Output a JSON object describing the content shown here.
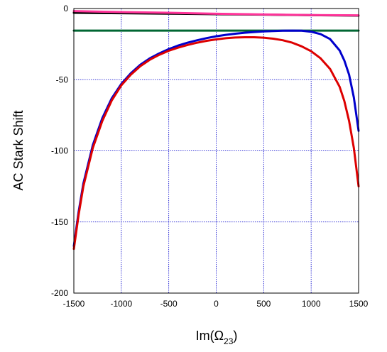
{
  "chart_data": {
    "type": "line",
    "title": "",
    "xlabel_main": "Im(Ω",
    "xlabel_sub": "23",
    "xlabel_close": ")",
    "ylabel": "AC Stark Shift",
    "xlim": [
      -1500,
      1500
    ],
    "ylim": [
      -200,
      0
    ],
    "xticks": [
      -1500,
      -1000,
      -500,
      0,
      500,
      1000,
      1500
    ],
    "yticks": [
      0,
      -50,
      -100,
      -150,
      -200
    ],
    "grid": true,
    "legend": "none",
    "colors": {
      "grid": "#0000cc",
      "axes": "#000000",
      "blue_curve": "#0000cc",
      "red_curve": "#dd0000",
      "green_line": "#006633",
      "black_line": "#000000",
      "pink_line": "#ff3399"
    },
    "series": [
      {
        "color_key": "green_line",
        "x": [
          -1500,
          1500
        ],
        "y": [
          -15.5,
          -15.5
        ]
      },
      {
        "color_key": "black_line",
        "x": [
          -1500,
          -1000,
          -500,
          0,
          500,
          1000,
          1500
        ],
        "y": [
          -3.0,
          -3.3,
          -3.6,
          -4.0,
          -4.3,
          -4.7,
          -5.0
        ]
      },
      {
        "color_key": "pink_line",
        "x": [
          -1500,
          -1000,
          -500,
          0,
          500,
          1000,
          1500
        ],
        "y": [
          -1.8,
          -2.5,
          -3.0,
          -3.7,
          -4.2,
          -4.6,
          -4.8
        ]
      },
      {
        "color_key": "blue_curve",
        "x": [
          -1500,
          -1450,
          -1400,
          -1300,
          -1200,
          -1100,
          -1000,
          -900,
          -800,
          -700,
          -600,
          -500,
          -400,
          -300,
          -200,
          -100,
          0,
          100,
          200,
          300,
          400,
          500,
          600,
          700,
          800,
          900,
          1000,
          1100,
          1200,
          1300,
          1350,
          1400,
          1450,
          1500
        ],
        "y": [
          -167,
          -143,
          -123,
          -96,
          -77,
          -63,
          -53,
          -45.5,
          -39.5,
          -35,
          -31.5,
          -28.5,
          -26.0,
          -24.0,
          -22.3,
          -20.8,
          -19.5,
          -18.5,
          -17.7,
          -17.0,
          -16.5,
          -16.1,
          -15.8,
          -15.6,
          -15.5,
          -15.6,
          -16.3,
          -18.0,
          -21.5,
          -29.5,
          -36.5,
          -46.5,
          -62.5,
          -86
        ]
      },
      {
        "color_key": "red_curve",
        "x": [
          -1500,
          -1450,
          -1400,
          -1300,
          -1200,
          -1100,
          -1000,
          -900,
          -800,
          -700,
          -600,
          -500,
          -400,
          -300,
          -200,
          -100,
          0,
          100,
          200,
          300,
          400,
          500,
          600,
          700,
          800,
          900,
          1000,
          1100,
          1200,
          1300,
          1350,
          1400,
          1450,
          1500
        ],
        "y": [
          -169,
          -145,
          -125,
          -98,
          -79,
          -64.5,
          -54,
          -46.5,
          -40.5,
          -36,
          -32.5,
          -29.7,
          -27.5,
          -25.6,
          -24.0,
          -22.7,
          -21.7,
          -20.9,
          -20.4,
          -20.2,
          -20.2,
          -20.5,
          -21.2,
          -22.3,
          -24.0,
          -26.6,
          -30.0,
          -35.0,
          -42.5,
          -55,
          -65,
          -79,
          -98,
          -125
        ]
      }
    ]
  }
}
